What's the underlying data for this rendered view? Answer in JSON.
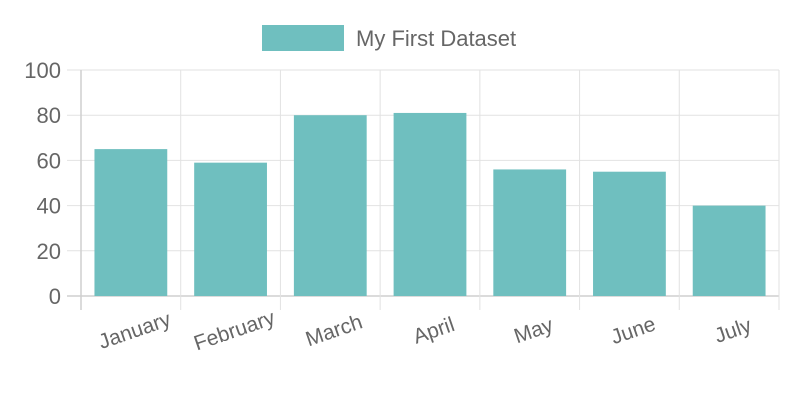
{
  "chart_data": {
    "type": "bar",
    "categories": [
      "January",
      "February",
      "March",
      "April",
      "May",
      "June",
      "July"
    ],
    "series": [
      {
        "name": "My First Dataset",
        "values": [
          65,
          59,
          80,
          81,
          56,
          55,
          40
        ]
      }
    ],
    "ylim": [
      0,
      100
    ],
    "yticks": [
      "0",
      "20",
      "40",
      "60",
      "80",
      "100"
    ],
    "grid": true,
    "legend_position": "top",
    "colors": {
      "bar_fill": "#6fbfbf",
      "grid": "#e2e2e2",
      "axis": "#cfcfcf",
      "text": "#666666"
    }
  }
}
